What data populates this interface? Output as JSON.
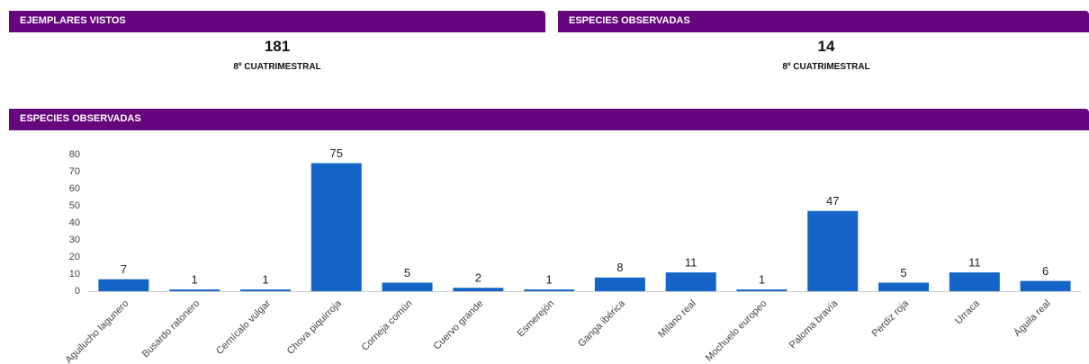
{
  "kpis": [
    {
      "title": "EJEMPLARES VISTOS",
      "value": 181,
      "subtitle": "8º CUATRIMESTRAL"
    },
    {
      "title": "ESPECIES OBSERVADAS",
      "value": 14,
      "subtitle": "8º CUATRIMESTRAL"
    }
  ],
  "chart_panel": {
    "title": "ESPECIES OBSERVADAS"
  },
  "chart_data": {
    "type": "bar",
    "categories": [
      "Aguilucho lagunero",
      "Busardo ratonero",
      "Cernícalo vulgar",
      "Chova piquirroja",
      "Corneja común",
      "Cuervo grande",
      "Esmerejón",
      "Ganga ibérica",
      "Milano real",
      "Mochuelo europeo",
      "Paloma bravía",
      "Perdiz roja",
      "Urraca",
      "Águila real"
    ],
    "values": [
      7,
      1,
      1,
      75,
      5,
      2,
      1,
      8,
      11,
      1,
      47,
      5,
      11,
      6
    ],
    "color": "#1565c8",
    "ylim": [
      0,
      80
    ],
    "yticks": [
      0,
      10,
      20,
      30,
      40,
      50,
      60,
      70,
      80
    ],
    "grid": false
  }
}
